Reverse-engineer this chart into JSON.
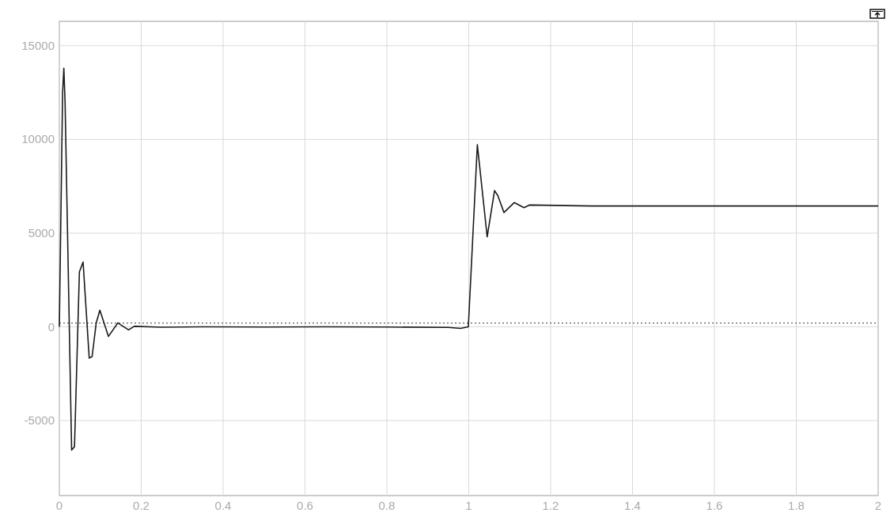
{
  "chart_data": {
    "type": "line",
    "x": [
      0,
      0.008,
      0.011,
      0.014,
      0.03,
      0.037,
      0.049,
      0.058,
      0.073,
      0.08,
      0.09,
      0.099,
      0.12,
      0.143,
      0.169,
      0.183,
      0.25,
      0.35,
      0.5,
      0.65,
      0.8,
      0.95,
      0.98,
      0.999,
      1.021,
      1.045,
      1.063,
      1.071,
      1.086,
      1.111,
      1.135,
      1.148,
      1.3,
      1.5,
      1.7,
      1.9,
      2
    ],
    "series": [
      {
        "color": "#1a1a1a",
        "values": [
          0,
          12500,
          13800,
          12000,
          -6570,
          -6400,
          2930,
          3460,
          -1670,
          -1590,
          200,
          890,
          -510,
          210,
          -160,
          30,
          -20,
          0,
          -10,
          0,
          -10,
          -30,
          -80,
          0,
          9720,
          4800,
          7270,
          7000,
          6100,
          6630,
          6360,
          6500,
          6450,
          6450,
          6450,
          6450,
          6450
        ]
      }
    ],
    "xlim": [
      0,
      2
    ],
    "xticks": [
      0,
      0.2,
      0.4,
      0.6,
      0.8,
      1,
      1.2,
      1.4,
      1.6,
      1.8,
      2
    ],
    "ylim": [
      -9000,
      16300
    ],
    "yticks": [
      -5000,
      0,
      5000,
      10000,
      15000
    ],
    "grid": true,
    "line_style": "solid",
    "ref_lines": [
      {
        "axis": "y",
        "value": 200,
        "line_style": "dotted",
        "color": "#333333"
      }
    ]
  }
}
